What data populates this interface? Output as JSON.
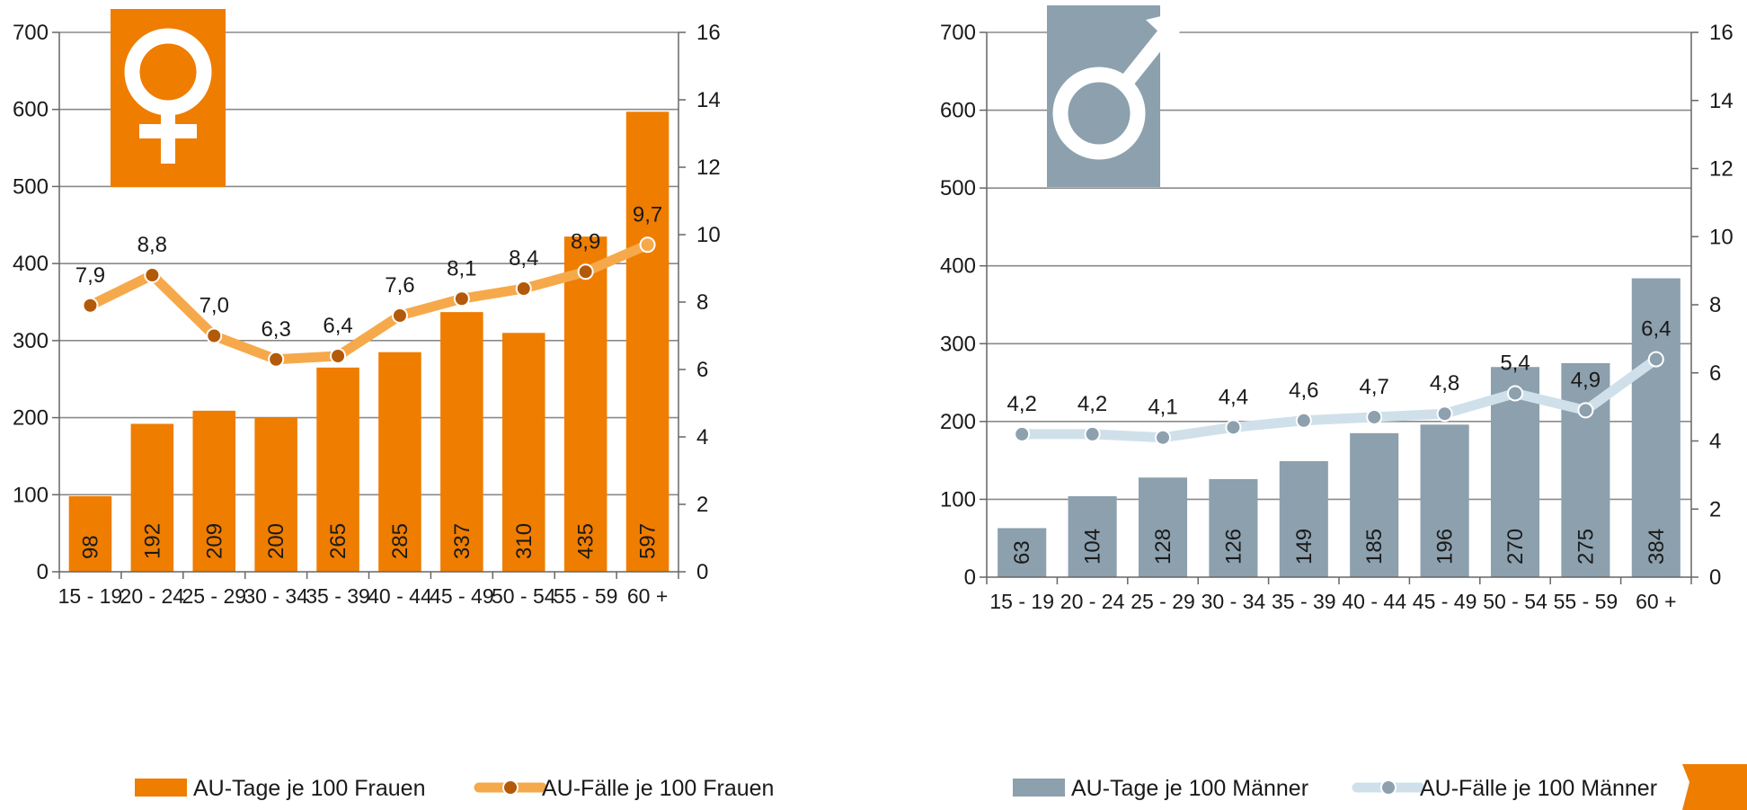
{
  "chart_data": [
    {
      "type": "bar",
      "icon": "female-symbol-icon",
      "categories": [
        "15 - 19",
        "20 - 24",
        "25 - 29",
        "30 - 34",
        "35 - 39",
        "40 - 44",
        "45 - 49",
        "50 - 54",
        "55 - 59",
        "60 +"
      ],
      "ylim": [
        0,
        700
      ],
      "y2lim": [
        0,
        16
      ],
      "yticks": [
        0,
        100,
        200,
        300,
        400,
        500,
        600,
        700
      ],
      "y2ticks": [
        0,
        2,
        4,
        6,
        8,
        10,
        12,
        14,
        16
      ],
      "grid": true,
      "legend_position": "bottom",
      "series": [
        {
          "name": "AU-Tage je 100 Frauen",
          "kind": "bar",
          "axis": "left",
          "color": "#EF7D00",
          "label_color": "#1a1a1a",
          "values": [
            98,
            192,
            209,
            200,
            265,
            285,
            337,
            310,
            435,
            597
          ],
          "labels": [
            "98",
            "192",
            "209",
            "200",
            "265",
            "285",
            "337",
            "310",
            "435",
            "597"
          ]
        },
        {
          "name": "AU-Fälle je 100 Frauen",
          "kind": "line",
          "axis": "right",
          "color": "#F6A94A",
          "marker_color": "#B35A0A",
          "last_marker_color": "#F6A94A",
          "values": [
            7.9,
            8.8,
            7.0,
            6.3,
            6.4,
            7.6,
            8.1,
            8.4,
            8.9,
            9.7
          ],
          "labels": [
            "7,9",
            "8,8",
            "7,0",
            "6,3",
            "6,4",
            "7,6",
            "8,1",
            "8,4",
            "8,9",
            "9,7"
          ]
        }
      ]
    },
    {
      "type": "bar",
      "icon": "male-symbol-icon",
      "categories": [
        "15 - 19",
        "20 - 24",
        "25 - 29",
        "30 - 34",
        "35 - 39",
        "40 - 44",
        "45 - 49",
        "50 - 54",
        "55 - 59",
        "60 +"
      ],
      "ylim": [
        0,
        700
      ],
      "y2lim": [
        0,
        16
      ],
      "yticks": [
        0,
        100,
        200,
        300,
        400,
        500,
        600,
        700
      ],
      "y2ticks": [
        0,
        2,
        4,
        6,
        8,
        10,
        12,
        14,
        16
      ],
      "grid": true,
      "legend_position": "bottom",
      "series": [
        {
          "name": "AU-Tage je 100 Männer",
          "kind": "bar",
          "axis": "left",
          "color": "#8CA0AE",
          "label_color": "#1a1a1a",
          "values": [
            63,
            104,
            128,
            126,
            149,
            185,
            196,
            270,
            275,
            384
          ],
          "labels": [
            "63",
            "104",
            "128",
            "126",
            "149",
            "185",
            "196",
            "270",
            "275",
            "384"
          ]
        },
        {
          "name": "AU-Fälle je 100 Männer",
          "kind": "line",
          "axis": "right",
          "color": "#CFE0EA",
          "marker_color": "#8CA0AE",
          "last_marker_color": "#8CA0AE",
          "values": [
            4.2,
            4.2,
            4.1,
            4.4,
            4.6,
            4.7,
            4.8,
            5.4,
            4.9,
            6.4
          ],
          "labels": [
            "4,2",
            "4,2",
            "4,1",
            "4,4",
            "4,6",
            "4,7",
            "4,8",
            "5,4",
            "4,9",
            "6,4"
          ]
        }
      ]
    }
  ],
  "colors": {
    "accent": "#EF7D00",
    "gray": "#8CA0AE",
    "grid": "#8a8a8a"
  }
}
